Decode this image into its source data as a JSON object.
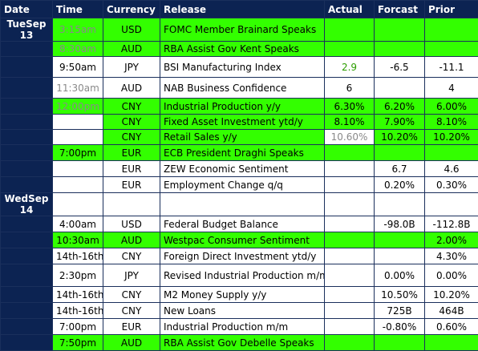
{
  "headers": {
    "date": "Date",
    "time": "Time",
    "currency": "Currency",
    "release": "Release",
    "actual": "Actual",
    "forecast": "Forcast",
    "prior": "Prior"
  },
  "days": {
    "tue": "TueSep 13",
    "wed": "WedSep 14"
  },
  "rows": [
    {
      "time": "3:15am",
      "currency": "USD",
      "release": "FOMC Member Brainard Speaks",
      "actual": "",
      "forecast": "",
      "prior": ""
    },
    {
      "time": "8:30am",
      "currency": "AUD",
      "release": "RBA Assist Gov Kent Speaks",
      "actual": "",
      "forecast": "",
      "prior": ""
    },
    {
      "time": "9:50am",
      "currency": "JPY",
      "release": "BSI Manufacturing Index",
      "actual": "2.9",
      "forecast": "-6.5",
      "prior": "-11.1"
    },
    {
      "time": "11:30am",
      "currency": "AUD",
      "release": "NAB Business Confidence",
      "actual": "6",
      "forecast": "",
      "prior": "4"
    },
    {
      "time": "12:00pm",
      "currency": "CNY",
      "release": "Industrial Production y/y",
      "actual": "6.30%",
      "forecast": "6.20%",
      "prior": "6.00%"
    },
    {
      "time": "",
      "currency": "CNY",
      "release": "Fixed Asset Investment ytd/y",
      "actual": "8.10%",
      "forecast": "7.90%",
      "prior": "8.10%"
    },
    {
      "time": "",
      "currency": "CNY",
      "release": "Retail Sales y/y",
      "actual": "10.60%",
      "forecast": "10.20%",
      "prior": "10.20%"
    },
    {
      "time": "7:00pm",
      "currency": "EUR",
      "release": "ECB President Draghi Speaks",
      "actual": "",
      "forecast": "",
      "prior": ""
    },
    {
      "time": "",
      "currency": "EUR",
      "release": "ZEW Economic Sentiment",
      "actual": "",
      "forecast": "6.7",
      "prior": "4.6"
    },
    {
      "time": "",
      "currency": "EUR",
      "release": "Employment Change q/q",
      "actual": "",
      "forecast": "0.20%",
      "prior": "0.30%"
    },
    {
      "time": "4:00am",
      "currency": "USD",
      "release": "Federal Budget Balance",
      "actual": "",
      "forecast": "-98.0B",
      "prior": "-112.8B"
    },
    {
      "time": "10:30am",
      "currency": "AUD",
      "release": "Westpac Consumer Sentiment",
      "actual": "",
      "forecast": "",
      "prior": "2.00%"
    },
    {
      "time": "14th-16th",
      "currency": "CNY",
      "release": "Foreign Direct Investment ytd/y",
      "actual": "",
      "forecast": "",
      "prior": "4.30%"
    },
    {
      "time": "2:30pm",
      "currency": "JPY",
      "release": "Revised Industrial Production m/m",
      "actual": "",
      "forecast": "0.00%",
      "prior": "0.00%"
    },
    {
      "time": "14th-16th",
      "currency": "CNY",
      "release": "M2 Money Supply y/y",
      "actual": "",
      "forecast": "10.50%",
      "prior": "10.20%"
    },
    {
      "time": "14th-16th",
      "currency": "CNY",
      "release": "New Loans",
      "actual": "",
      "forecast": "725B",
      "prior": "464B"
    },
    {
      "time": "7:00pm",
      "currency": "EUR",
      "release": "Industrial Production m/m",
      "actual": "",
      "forecast": "-0.80%",
      "prior": "0.60%"
    },
    {
      "time": "7:50pm",
      "currency": "AUD",
      "release": "RBA Assist Gov Debelle Speaks",
      "actual": "",
      "forecast": "",
      "prior": ""
    }
  ],
  "colors": {
    "header_navy": "#0c2352",
    "highlight_green": "#33ff00",
    "muted_text": "#8a8a8a",
    "positive_text": "#2c9d00"
  }
}
